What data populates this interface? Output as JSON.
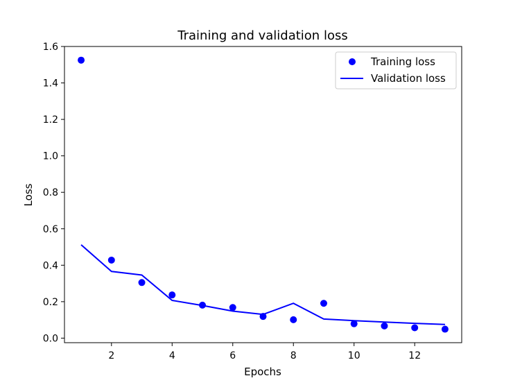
{
  "chart_data": {
    "type": "line",
    "title": "Training and validation loss",
    "xlabel": "Epochs",
    "ylabel": "Loss",
    "xlim": [
      0.45,
      13.55
    ],
    "ylim": [
      -0.025,
      1.6
    ],
    "xticks": [
      2,
      4,
      6,
      8,
      10,
      12
    ],
    "yticks": [
      0.0,
      0.2,
      0.4,
      0.6,
      0.8,
      1.0,
      1.2,
      1.4,
      1.6
    ],
    "x": [
      1,
      2,
      3,
      4,
      5,
      6,
      7,
      8,
      9,
      10,
      11,
      12,
      13
    ],
    "grid": false,
    "legend_position": "top-right",
    "series": [
      {
        "name": "Training loss",
        "style": "points",
        "color": "#0000ff",
        "values": [
          1.525,
          0.428,
          0.305,
          0.237,
          0.181,
          0.168,
          0.119,
          0.101,
          0.191,
          0.079,
          0.067,
          0.057,
          0.049
        ]
      },
      {
        "name": "Validation loss",
        "style": "line",
        "color": "#0000ff",
        "values": [
          0.512,
          0.366,
          0.346,
          0.207,
          0.179,
          0.148,
          0.13,
          0.191,
          0.105,
          0.096,
          0.088,
          0.081,
          0.075
        ]
      }
    ]
  }
}
